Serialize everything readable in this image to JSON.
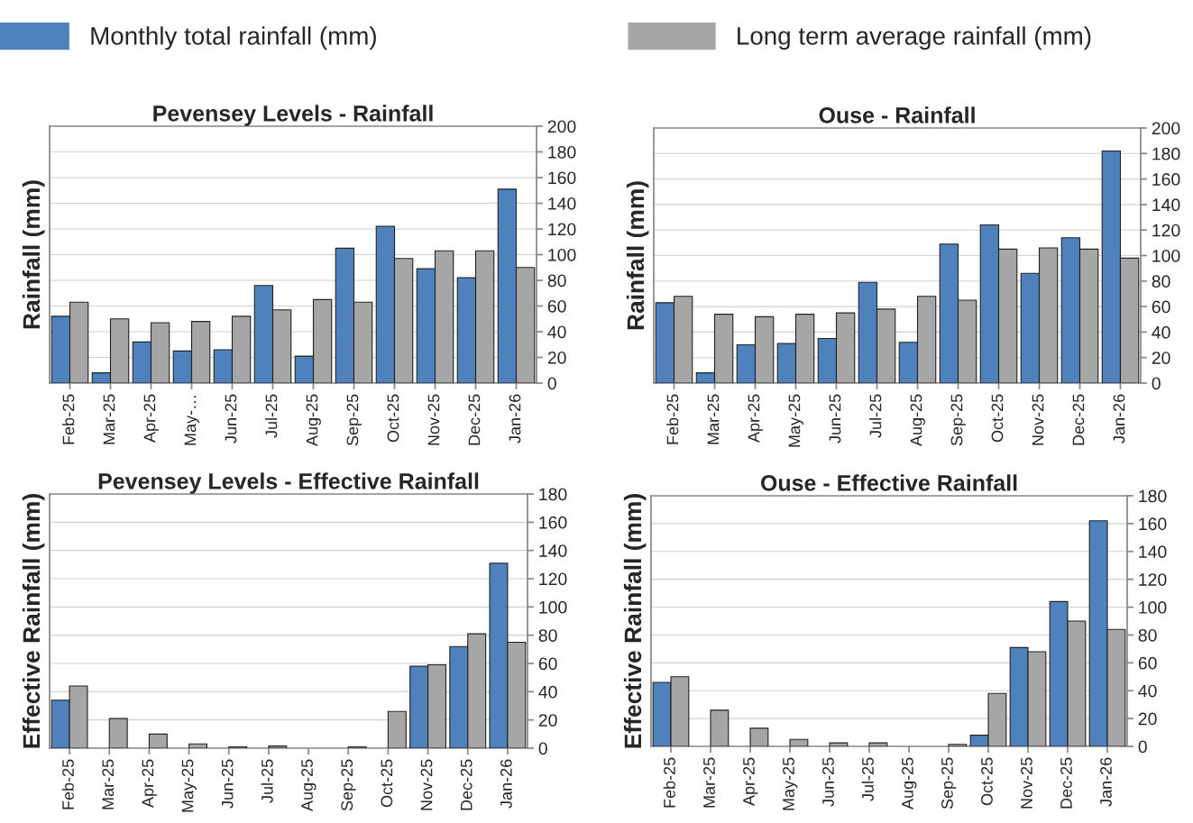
{
  "chart_data": [
    {
      "type": "bar",
      "title": "Pevensey Levels - Rainfall",
      "ylabel": "Rainfall (mm)",
      "categories": [
        "Feb-25",
        "Mar-25",
        "Apr-25",
        "May-…",
        "Jun-25",
        "Jul-25",
        "Aug-25",
        "Sep-25",
        "Oct-25",
        "Nov-25",
        "Dec-25",
        "Jan-26"
      ],
      "ylim": [
        0,
        200
      ],
      "yticks": [
        0,
        20,
        40,
        60,
        80,
        100,
        120,
        140,
        160,
        180,
        200
      ],
      "grid": "y",
      "legend": "top",
      "series": [
        {
          "name": "Monthly total rainfall (mm)",
          "color": "#4f81bd",
          "values": [
            52,
            8,
            32,
            25,
            26,
            76,
            21,
            105,
            122,
            89,
            82,
            151
          ]
        },
        {
          "name": "Long term average rainfall (mm)",
          "color": "#a6a6a6",
          "values": [
            63,
            50,
            47,
            48,
            52,
            57,
            65,
            63,
            97,
            103,
            103,
            90
          ]
        }
      ]
    },
    {
      "type": "bar",
      "title": "Ouse - Rainfall",
      "ylabel": "Rainfall (mm)",
      "categories": [
        "Feb-25",
        "Mar-25",
        "Apr-25",
        "May-25",
        "Jun-25",
        "Jul-25",
        "Aug-25",
        "Sep-25",
        "Oct-25",
        "Nov-25",
        "Dec-25",
        "Jan-26"
      ],
      "ylim": [
        0,
        200
      ],
      "yticks": [
        0,
        20,
        40,
        60,
        80,
        100,
        120,
        140,
        160,
        180,
        200
      ],
      "grid": "y",
      "series": [
        {
          "color": "#4f81bd",
          "values": [
            63,
            8,
            30,
            31,
            35,
            79,
            32,
            109,
            124,
            86,
            114,
            182
          ]
        },
        {
          "color": "#a6a6a6",
          "values": [
            68,
            54,
            52,
            54,
            55,
            58,
            68,
            65,
            105,
            106,
            105,
            98
          ]
        }
      ]
    },
    {
      "type": "bar",
      "title": "Pevensey Levels - Effective Rainfall",
      "ylabel": "Effective Rainfall (mm)",
      "categories": [
        "Feb-25",
        "Mar-25",
        "Apr-25",
        "May-25",
        "Jun-25",
        "Jul-25",
        "Aug-25",
        "Sep-25",
        "Oct-25",
        "Nov-25",
        "Dec-25",
        "Jan-26"
      ],
      "ylim": [
        0,
        180
      ],
      "yticks": [
        0,
        20,
        40,
        60,
        80,
        100,
        120,
        140,
        160,
        180
      ],
      "grid": "y",
      "series": [
        {
          "color": "#4f81bd",
          "values": [
            34,
            0,
            0,
            0,
            0,
            0,
            0,
            0,
            0,
            58,
            72,
            131
          ]
        },
        {
          "color": "#a6a6a6",
          "values": [
            44,
            21,
            10,
            3,
            1,
            1.5,
            0,
            1,
            26,
            59,
            81,
            75
          ]
        }
      ]
    },
    {
      "type": "bar",
      "title": "Ouse - Effective Rainfall",
      "ylabel": "Effective Rainfall (mm)",
      "categories": [
        "Feb-25",
        "Mar-25",
        "Apr-25",
        "May-25",
        "Jun-25",
        "Jul-25",
        "Aug-25",
        "Sep-25",
        "Oct-25",
        "Nov-25",
        "Dec-25",
        "Jan-26"
      ],
      "ylim": [
        0,
        180
      ],
      "yticks": [
        0,
        20,
        40,
        60,
        80,
        100,
        120,
        140,
        160,
        180
      ],
      "grid": "y",
      "series": [
        {
          "color": "#4f81bd",
          "values": [
            46,
            0,
            0,
            0,
            0,
            0,
            0,
            0,
            8,
            71,
            104,
            162
          ]
        },
        {
          "color": "#a6a6a6",
          "values": [
            50,
            26,
            13,
            5,
            2.5,
            2.5,
            0,
            1.5,
            38,
            68,
            90,
            84
          ]
        }
      ]
    }
  ]
}
